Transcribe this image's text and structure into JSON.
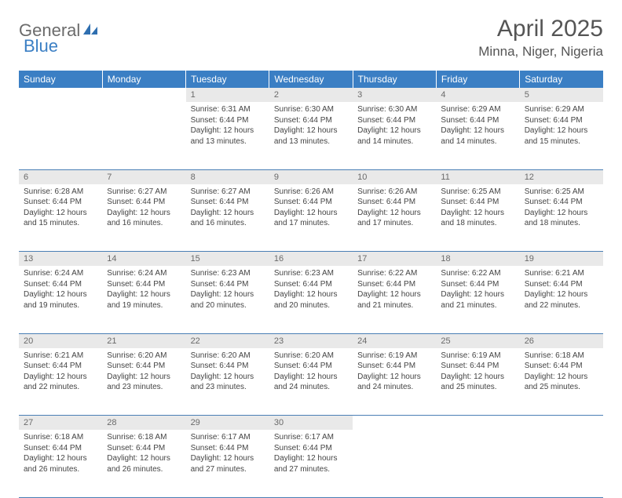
{
  "logo": {
    "text1": "General",
    "text2": "Blue"
  },
  "title": "April 2025",
  "location": "Minna, Niger, Nigeria",
  "colors": {
    "header_bg": "#3b7fc4",
    "header_text": "#ffffff",
    "daynum_bg": "#e9e9e9",
    "daynum_text": "#6a6a6a",
    "body_text": "#444444",
    "border": "#4a7fb5",
    "logo_gray": "#6b6b6b",
    "logo_blue": "#3b7fc4"
  },
  "weekdays": [
    "Sunday",
    "Monday",
    "Tuesday",
    "Wednesday",
    "Thursday",
    "Friday",
    "Saturday"
  ],
  "weeks": [
    [
      null,
      null,
      {
        "n": "1",
        "sr": "6:31 AM",
        "ss": "6:44 PM",
        "dl": "12 hours and 13 minutes."
      },
      {
        "n": "2",
        "sr": "6:30 AM",
        "ss": "6:44 PM",
        "dl": "12 hours and 13 minutes."
      },
      {
        "n": "3",
        "sr": "6:30 AM",
        "ss": "6:44 PM",
        "dl": "12 hours and 14 minutes."
      },
      {
        "n": "4",
        "sr": "6:29 AM",
        "ss": "6:44 PM",
        "dl": "12 hours and 14 minutes."
      },
      {
        "n": "5",
        "sr": "6:29 AM",
        "ss": "6:44 PM",
        "dl": "12 hours and 15 minutes."
      }
    ],
    [
      {
        "n": "6",
        "sr": "6:28 AM",
        "ss": "6:44 PM",
        "dl": "12 hours and 15 minutes."
      },
      {
        "n": "7",
        "sr": "6:27 AM",
        "ss": "6:44 PM",
        "dl": "12 hours and 16 minutes."
      },
      {
        "n": "8",
        "sr": "6:27 AM",
        "ss": "6:44 PM",
        "dl": "12 hours and 16 minutes."
      },
      {
        "n": "9",
        "sr": "6:26 AM",
        "ss": "6:44 PM",
        "dl": "12 hours and 17 minutes."
      },
      {
        "n": "10",
        "sr": "6:26 AM",
        "ss": "6:44 PM",
        "dl": "12 hours and 17 minutes."
      },
      {
        "n": "11",
        "sr": "6:25 AM",
        "ss": "6:44 PM",
        "dl": "12 hours and 18 minutes."
      },
      {
        "n": "12",
        "sr": "6:25 AM",
        "ss": "6:44 PM",
        "dl": "12 hours and 18 minutes."
      }
    ],
    [
      {
        "n": "13",
        "sr": "6:24 AM",
        "ss": "6:44 PM",
        "dl": "12 hours and 19 minutes."
      },
      {
        "n": "14",
        "sr": "6:24 AM",
        "ss": "6:44 PM",
        "dl": "12 hours and 19 minutes."
      },
      {
        "n": "15",
        "sr": "6:23 AM",
        "ss": "6:44 PM",
        "dl": "12 hours and 20 minutes."
      },
      {
        "n": "16",
        "sr": "6:23 AM",
        "ss": "6:44 PM",
        "dl": "12 hours and 20 minutes."
      },
      {
        "n": "17",
        "sr": "6:22 AM",
        "ss": "6:44 PM",
        "dl": "12 hours and 21 minutes."
      },
      {
        "n": "18",
        "sr": "6:22 AM",
        "ss": "6:44 PM",
        "dl": "12 hours and 21 minutes."
      },
      {
        "n": "19",
        "sr": "6:21 AM",
        "ss": "6:44 PM",
        "dl": "12 hours and 22 minutes."
      }
    ],
    [
      {
        "n": "20",
        "sr": "6:21 AM",
        "ss": "6:44 PM",
        "dl": "12 hours and 22 minutes."
      },
      {
        "n": "21",
        "sr": "6:20 AM",
        "ss": "6:44 PM",
        "dl": "12 hours and 23 minutes."
      },
      {
        "n": "22",
        "sr": "6:20 AM",
        "ss": "6:44 PM",
        "dl": "12 hours and 23 minutes."
      },
      {
        "n": "23",
        "sr": "6:20 AM",
        "ss": "6:44 PM",
        "dl": "12 hours and 24 minutes."
      },
      {
        "n": "24",
        "sr": "6:19 AM",
        "ss": "6:44 PM",
        "dl": "12 hours and 24 minutes."
      },
      {
        "n": "25",
        "sr": "6:19 AM",
        "ss": "6:44 PM",
        "dl": "12 hours and 25 minutes."
      },
      {
        "n": "26",
        "sr": "6:18 AM",
        "ss": "6:44 PM",
        "dl": "12 hours and 25 minutes."
      }
    ],
    [
      {
        "n": "27",
        "sr": "6:18 AM",
        "ss": "6:44 PM",
        "dl": "12 hours and 26 minutes."
      },
      {
        "n": "28",
        "sr": "6:18 AM",
        "ss": "6:44 PM",
        "dl": "12 hours and 26 minutes."
      },
      {
        "n": "29",
        "sr": "6:17 AM",
        "ss": "6:44 PM",
        "dl": "12 hours and 27 minutes."
      },
      {
        "n": "30",
        "sr": "6:17 AM",
        "ss": "6:44 PM",
        "dl": "12 hours and 27 minutes."
      },
      null,
      null,
      null
    ]
  ],
  "labels": {
    "sunrise": "Sunrise: ",
    "sunset": "Sunset: ",
    "daylight": "Daylight: "
  }
}
